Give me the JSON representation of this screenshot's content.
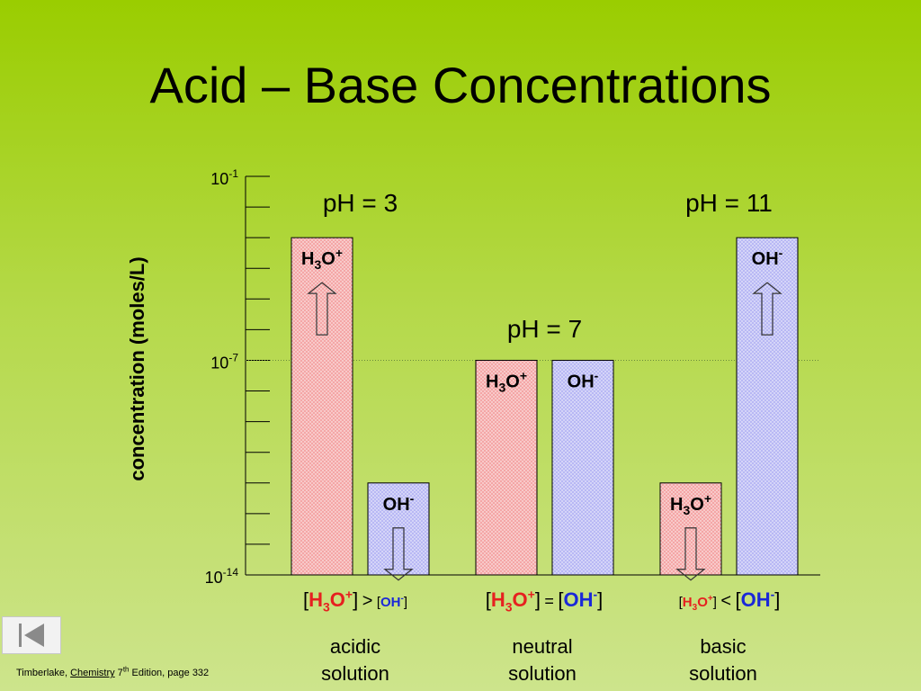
{
  "title": "Acid – Base Concentrations",
  "chart_data": {
    "type": "bar",
    "ylabel": "concentration (moles/L)",
    "yscale": "log",
    "ylim_exponent": [
      -14,
      -1
    ],
    "y_tick_labels": [
      {
        "base": "10",
        "exp": "-1",
        "value_exp": -1
      },
      {
        "base": "10",
        "exp": "-7",
        "value_exp": -7
      },
      {
        "base": "10",
        "exp": "-14",
        "value_exp": -14
      }
    ],
    "minor_tick_step_exp": 1,
    "reference_line_exp": -7,
    "groups": [
      {
        "ph_label": "pH = 3",
        "bars": [
          {
            "ion": "h3o",
            "log_value": -3,
            "arrow": "up"
          },
          {
            "ion": "oh",
            "log_value": -11,
            "arrow": "down"
          }
        ]
      },
      {
        "ph_label": "pH = 7",
        "bars": [
          {
            "ion": "h3o",
            "log_value": -7,
            "arrow": "none"
          },
          {
            "ion": "oh",
            "log_value": -7,
            "arrow": "none"
          }
        ]
      },
      {
        "ph_label": "pH = 11",
        "bars": [
          {
            "ion": "h3o",
            "log_value": -11,
            "arrow": "down"
          },
          {
            "ion": "oh",
            "log_value": -3,
            "arrow": "up"
          }
        ]
      }
    ],
    "colors": {
      "h3o_fill": "#f4a6a6",
      "oh_fill": "#b8b8f4",
      "h3o_text": "#e62020",
      "oh_text": "#1a28d8"
    }
  },
  "ions": {
    "h3o": {
      "base": "H",
      "sub": "3",
      "mid": "O",
      "sup": "+"
    },
    "oh": {
      "base": "OH",
      "sup": "-"
    }
  },
  "comparisons": [
    {
      "left_open": "[",
      "left_close": "]",
      "op": ">",
      "right_open": "[",
      "right_close": "]"
    },
    {
      "left_open": "[",
      "left_close": "]",
      "op": "=",
      "right_open": "[",
      "right_close": "]"
    },
    {
      "left_open": "[",
      "left_close": "]",
      "op": "<",
      "right_open": "[",
      "right_close": "]"
    }
  ],
  "solutions": [
    {
      "line1": "acidic",
      "line2": "solution"
    },
    {
      "line1": "neutral",
      "line2": "solution"
    },
    {
      "line1": "basic",
      "line2": "solution"
    }
  ],
  "citation": {
    "prefix": "Timberlake, ",
    "book": "Chemistry",
    "edition_num": " 7",
    "edition_sup": "th",
    "suffix": " Edition, page 332"
  },
  "nav": {
    "icon": "first-slide-icon"
  }
}
